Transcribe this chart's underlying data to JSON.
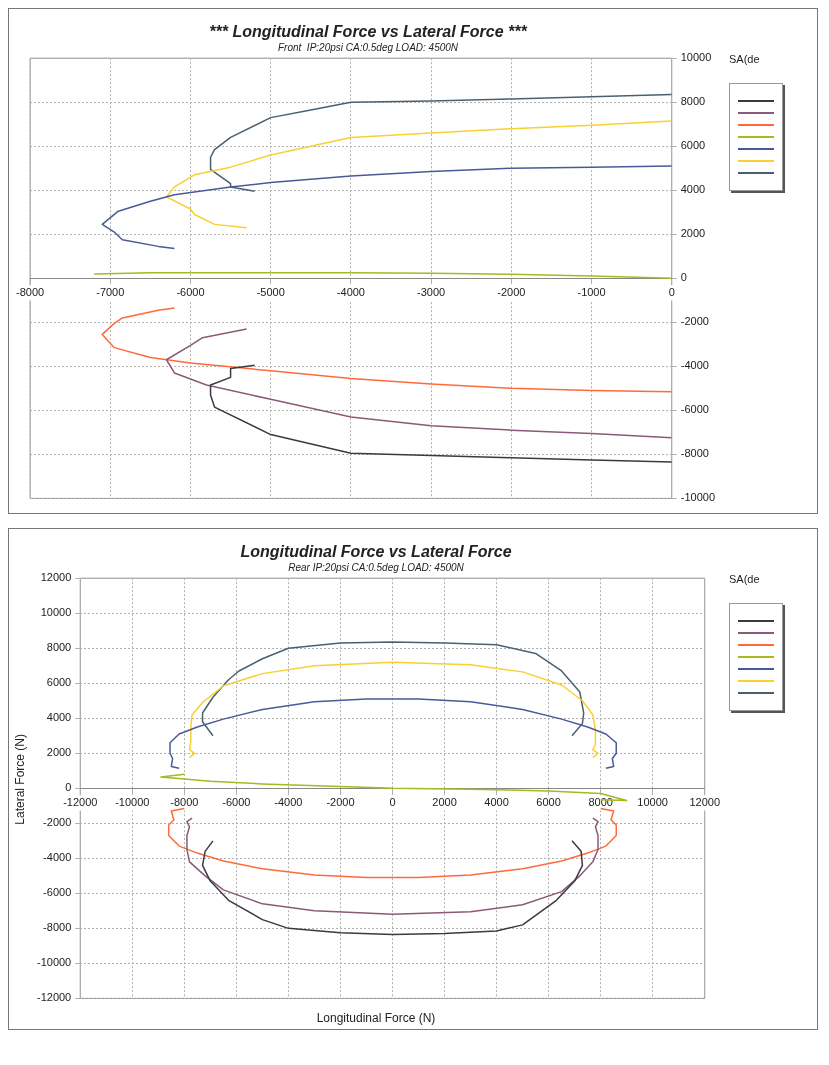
{
  "chart_data": [
    {
      "type": "line",
      "title": "*** Longitudinal Force vs Lateral Force ***",
      "subtitle": "Front  IP:20psi CA:0.5deg LOAD: 4500N",
      "legend_title": "SA(de",
      "grid": true,
      "marker": "none",
      "line_style": "solid",
      "xlim": [
        -8000,
        0
      ],
      "xticks": [
        -8000,
        -7000,
        -6000,
        -5000,
        -4000,
        -3000,
        -2000,
        -1000,
        0
      ],
      "ylim": [
        -10000,
        10000
      ],
      "yticks": [
        -10000,
        -8000,
        -6000,
        -4000,
        -2000,
        0,
        2000,
        4000,
        6000,
        8000,
        10000
      ],
      "series": [
        {
          "color": "#3a3a40",
          "x": [
            -5200,
            -5500,
            -5500,
            -5750,
            -5750,
            -5700,
            -5000,
            -4000,
            -3000,
            -2000,
            -1000,
            0
          ],
          "values": [
            -3950,
            -4100,
            -4500,
            -4850,
            -5300,
            -5850,
            -7100,
            -7950,
            -8050,
            -8150,
            -8250,
            -8350
          ]
        },
        {
          "color": "#8a5a78",
          "x": [
            -5300,
            -5850,
            -6000,
            -6300,
            -6200,
            -5800,
            -5000,
            -4000,
            -3000,
            -2000,
            -1000,
            0
          ],
          "values": [
            -2300,
            -2700,
            -3050,
            -3700,
            -4300,
            -4850,
            -5500,
            -6300,
            -6700,
            -6900,
            -7050,
            -7250
          ]
        },
        {
          "color": "#ff6a3a",
          "x": [
            -6200,
            -6400,
            -6850,
            -6950,
            -7100,
            -6950,
            -6500,
            -6000,
            -5000,
            -4000,
            -3000,
            -2000,
            -1000,
            0
          ],
          "values": [
            -1350,
            -1450,
            -1800,
            -2050,
            -2550,
            -3150,
            -3600,
            -3850,
            -4200,
            -4550,
            -4800,
            -5000,
            -5100,
            -5150
          ]
        },
        {
          "color": "#a8b820",
          "x": [
            -7200,
            -6500,
            -6000,
            -5000,
            -4000,
            -3000,
            -2000,
            -1000,
            0
          ],
          "values": [
            200,
            250,
            250,
            250,
            250,
            230,
            180,
            100,
            0
          ]
        },
        {
          "color": "#4a5a98",
          "x": [
            -6200,
            -6400,
            -6850,
            -6950,
            -7100,
            -6900,
            -6500,
            -6200,
            -5500,
            -5000,
            -4000,
            -3000,
            -2000,
            -1000,
            0
          ],
          "values": [
            1350,
            1450,
            1750,
            2100,
            2450,
            3050,
            3500,
            3800,
            4150,
            4350,
            4650,
            4850,
            5000,
            5050,
            5100
          ]
        },
        {
          "color": "#f8d030",
          "x": [
            -5300,
            -5700,
            -5950,
            -6000,
            -6300,
            -6200,
            -5950,
            -5500,
            -5000,
            -4000,
            -3000,
            -2000,
            -1000,
            0
          ],
          "values": [
            2300,
            2450,
            2900,
            3150,
            3700,
            4150,
            4700,
            5050,
            5600,
            6400,
            6600,
            6800,
            6950,
            7150
          ]
        },
        {
          "color": "#4a6070",
          "x": [
            -5200,
            -5500,
            -5500,
            -5750,
            -5750,
            -5700,
            -5500,
            -5000,
            -4500,
            -4000,
            -3000,
            -2000,
            -1000,
            0
          ],
          "values": [
            3950,
            4150,
            4300,
            4950,
            5500,
            5850,
            6400,
            7300,
            7650,
            8000,
            8050,
            8150,
            8250,
            8350
          ]
        }
      ]
    },
    {
      "type": "line",
      "title": "Longitudinal Force vs Lateral Force",
      "subtitle": "Rear IP:20psi CA:0.5deg LOAD: 4500N",
      "xlabel": "Longitudinal Force (N)",
      "ylabel": "Lateral Force (N)",
      "legend_title": "SA(de",
      "grid": true,
      "marker": "none",
      "line_style": "solid",
      "xlim": [
        -12000,
        12000
      ],
      "xticks": [
        -12000,
        -10000,
        -8000,
        -6000,
        -4000,
        -2000,
        0,
        2000,
        4000,
        6000,
        8000,
        10000,
        12000
      ],
      "ylim": [
        -12000,
        12000
      ],
      "yticks": [
        -12000,
        -10000,
        -8000,
        -6000,
        -4000,
        -2000,
        0,
        2000,
        4000,
        6000,
        8000,
        10000,
        12000
      ],
      "series": [
        {
          "color": "#3a3a40",
          "x": [
            -6900,
            -7200,
            -7300,
            -7000,
            -6300,
            -5000,
            -4000,
            -2000,
            0,
            2000,
            4000,
            5000,
            6300,
            7000,
            7300,
            7250,
            6900
          ],
          "values": [
            -3000,
            -3600,
            -4400,
            -5300,
            -6400,
            -7500,
            -8000,
            -8250,
            -8350,
            -8300,
            -8150,
            -7800,
            -6400,
            -5300,
            -4400,
            -3600,
            -3000
          ]
        },
        {
          "color": "#8a5a78",
          "x": [
            -7700,
            -7900,
            -7800,
            -7900,
            -7900,
            -7800,
            -7200,
            -6500,
            -5000,
            -3000,
            0,
            3000,
            5000,
            6500,
            7200,
            7700,
            7900,
            7900,
            7800,
            7900,
            7700
          ],
          "values": [
            -1700,
            -1900,
            -2200,
            -2700,
            -3500,
            -4200,
            -5000,
            -5800,
            -6600,
            -7000,
            -7200,
            -7050,
            -6650,
            -5900,
            -5000,
            -4200,
            -3500,
            -2700,
            -2200,
            -1900,
            -1700
          ]
        },
        {
          "color": "#ff6a3a",
          "x": [
            -8000,
            -8500,
            -8400,
            -8600,
            -8600,
            -8200,
            -7500,
            -6500,
            -5000,
            -3000,
            -1000,
            0,
            1000,
            3000,
            5000,
            6500,
            7500,
            8200,
            8600,
            8600,
            8400,
            8500,
            8000
          ],
          "values": [
            -1150,
            -1300,
            -1800,
            -2100,
            -2700,
            -3300,
            -3700,
            -4150,
            -4600,
            -4950,
            -5100,
            -5100,
            -5100,
            -4950,
            -4600,
            -4150,
            -3700,
            -3300,
            -2700,
            -2100,
            -1800,
            -1300,
            -1150
          ]
        },
        {
          "color": "#a8b820",
          "x": [
            -8000,
            -8900,
            -7000,
            -5000,
            -2000,
            0,
            3000,
            6000,
            8000,
            9000,
            8000
          ],
          "values": [
            800,
            650,
            400,
            250,
            100,
            0,
            -50,
            -150,
            -300,
            -700,
            -650
          ]
        },
        {
          "color": "#4a5a98",
          "x": [
            -8200,
            -8500,
            -8450,
            -8550,
            -8550,
            -8200,
            -7500,
            -6500,
            -5000,
            -3000,
            -1000,
            0,
            1000,
            3000,
            5000,
            6500,
            7500,
            8200,
            8600,
            8600,
            8450,
            8500,
            8200
          ],
          "values": [
            1150,
            1250,
            1700,
            2000,
            2600,
            3100,
            3500,
            3950,
            4500,
            4950,
            5100,
            5100,
            5100,
            4950,
            4500,
            3950,
            3500,
            3100,
            2600,
            2000,
            1700,
            1250,
            1150
          ]
        },
        {
          "color": "#f8d030",
          "x": [
            -7800,
            -7600,
            -7800,
            -7750,
            -7750,
            -7700,
            -7300,
            -6500,
            -5000,
            -3000,
            0,
            3000,
            5000,
            6500,
            7300,
            7700,
            7800,
            7800,
            7700,
            7900,
            7700
          ],
          "values": [
            1750,
            2000,
            2200,
            2700,
            3500,
            4200,
            4900,
            5850,
            6550,
            7000,
            7200,
            7050,
            6650,
            5900,
            5000,
            4200,
            3300,
            2500,
            2200,
            2000,
            1750
          ]
        },
        {
          "color": "#4a6070",
          "x": [
            -6900,
            -7300,
            -7300,
            -6900,
            -6300,
            -5900,
            -5000,
            -4000,
            -2000,
            0,
            2000,
            4000,
            5500,
            6500,
            7200,
            7350,
            7300,
            6900
          ],
          "values": [
            3000,
            3800,
            4300,
            5200,
            6200,
            6700,
            7400,
            8000,
            8300,
            8350,
            8300,
            8200,
            7700,
            6700,
            5500,
            4300,
            3700,
            3000
          ]
        }
      ]
    }
  ]
}
